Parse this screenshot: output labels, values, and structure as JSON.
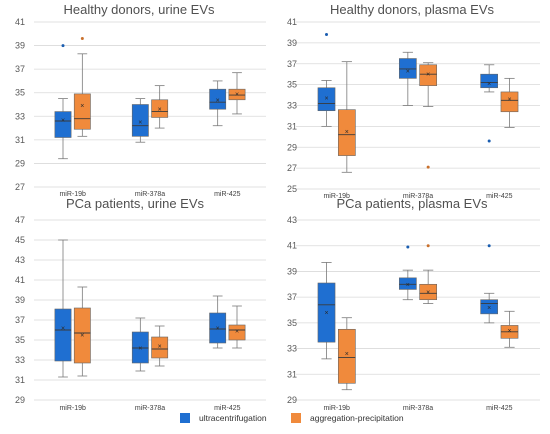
{
  "legend": [
    {
      "label": "ultracentrifugation",
      "color": "#1f6fd1"
    },
    {
      "label": "aggregation-precipitation",
      "color": "#f08a3c"
    }
  ],
  "chart_data": [
    {
      "type": "box",
      "title": "Healthy donors, urine EVs",
      "ylim": [
        27,
        41
      ],
      "yticks": [
        27,
        29,
        31,
        33,
        35,
        37,
        39,
        41
      ],
      "grid": true,
      "categories": [
        "miR-19b",
        "miR-378a",
        "miR-425"
      ],
      "series": [
        {
          "name": "ultracentrifugation",
          "color": "#1f6fd1",
          "boxes": [
            {
              "min": 29.4,
              "q1": 31.2,
              "median": 32.6,
              "q3": 33.4,
              "max": 34.5,
              "mean": 32.7,
              "outliers": [
                39.0
              ]
            },
            {
              "min": 30.8,
              "q1": 31.3,
              "median": 32.2,
              "q3": 34.0,
              "max": 34.5,
              "mean": 32.5,
              "outliers": []
            },
            {
              "min": 32.2,
              "q1": 33.6,
              "median": 34.2,
              "q3": 35.3,
              "max": 36.0,
              "mean": 34.4,
              "outliers": []
            }
          ]
        },
        {
          "name": "aggregation-precipitation",
          "color": "#f08a3c",
          "boxes": [
            {
              "min": 31.3,
              "q1": 31.9,
              "median": 32.8,
              "q3": 34.9,
              "max": 38.3,
              "mean": 33.9,
              "outliers": [
                39.6
              ]
            },
            {
              "min": 32.0,
              "q1": 32.9,
              "median": 33.4,
              "q3": 34.4,
              "max": 35.6,
              "mean": 33.6,
              "outliers": []
            },
            {
              "min": 33.2,
              "q1": 34.4,
              "median": 34.8,
              "q3": 35.3,
              "max": 36.7,
              "mean": 34.9,
              "outliers": []
            }
          ]
        }
      ]
    },
    {
      "type": "box",
      "title": "Healthy donors, plasma EVs",
      "ylim": [
        25,
        41
      ],
      "yticks": [
        25,
        27,
        29,
        31,
        33,
        35,
        37,
        39,
        41
      ],
      "grid": true,
      "categories": [
        "miR-19b",
        "miR-378a",
        "miR-425"
      ],
      "series": [
        {
          "name": "ultracentrifugation",
          "color": "#1f6fd1",
          "boxes": [
            {
              "min": 31.0,
              "q1": 32.5,
              "median": 33.2,
              "q3": 34.7,
              "max": 35.4,
              "mean": 33.7,
              "outliers": [
                39.8
              ]
            },
            {
              "min": 33.0,
              "q1": 35.6,
              "median": 36.5,
              "q3": 37.5,
              "max": 38.1,
              "mean": 36.3,
              "outliers": []
            },
            {
              "min": 34.3,
              "q1": 34.7,
              "median": 35.2,
              "q3": 36.0,
              "max": 36.9,
              "mean": 35.1,
              "outliers": [
                29.6
              ]
            }
          ]
        },
        {
          "name": "aggregation-precipitation",
          "color": "#f08a3c",
          "boxes": [
            {
              "min": 26.6,
              "q1": 28.2,
              "median": 30.2,
              "q3": 32.6,
              "max": 37.2,
              "mean": 30.5,
              "outliers": []
            },
            {
              "min": 32.9,
              "q1": 34.9,
              "median": 36.0,
              "q3": 36.9,
              "max": 37.1,
              "mean": 36.0,
              "outliers": [
                27.1
              ]
            },
            {
              "min": 30.9,
              "q1": 32.4,
              "median": 33.5,
              "q3": 34.3,
              "max": 35.6,
              "mean": 33.6,
              "outliers": []
            }
          ]
        }
      ]
    },
    {
      "type": "box",
      "title": "PCa patients, urine EVs",
      "ylim": [
        29,
        47
      ],
      "yticks": [
        29,
        31,
        33,
        35,
        37,
        39,
        41,
        43,
        45,
        47
      ],
      "grid": true,
      "categories": [
        "miR-19b",
        "miR-378a",
        "miR-425"
      ],
      "series": [
        {
          "name": "ultracentrifugation",
          "color": "#1f6fd1",
          "boxes": [
            {
              "min": 31.3,
              "q1": 32.9,
              "median": 36.0,
              "q3": 38.1,
              "max": 45.0,
              "mean": 36.2,
              "outliers": []
            },
            {
              "min": 31.9,
              "q1": 32.7,
              "median": 34.2,
              "q3": 35.8,
              "max": 37.2,
              "mean": 34.2,
              "outliers": []
            },
            {
              "min": 34.2,
              "q1": 34.7,
              "median": 36.1,
              "q3": 37.7,
              "max": 39.4,
              "mean": 36.2,
              "outliers": []
            }
          ]
        },
        {
          "name": "aggregation-precipitation",
          "color": "#f08a3c",
          "boxes": [
            {
              "min": 31.4,
              "q1": 32.7,
              "median": 35.7,
              "q3": 38.2,
              "max": 40.3,
              "mean": 35.5,
              "outliers": []
            },
            {
              "min": 32.4,
              "q1": 33.2,
              "median": 34.1,
              "q3": 35.3,
              "max": 36.4,
              "mean": 34.4,
              "outliers": []
            },
            {
              "min": 34.2,
              "q1": 35.0,
              "median": 36.0,
              "q3": 36.5,
              "max": 38.4,
              "mean": 35.9,
              "outliers": []
            }
          ]
        }
      ]
    },
    {
      "type": "box",
      "title": "PCa patients, plasma EVs",
      "ylim": [
        29,
        43
      ],
      "yticks": [
        29,
        31,
        33,
        35,
        37,
        39,
        41,
        43
      ],
      "grid": true,
      "categories": [
        "miR-19b",
        "miR-378a",
        "miR-425"
      ],
      "series": [
        {
          "name": "ultracentrifugation",
          "color": "#1f6fd1",
          "boxes": [
            {
              "min": 32.2,
              "q1": 33.5,
              "median": 36.4,
              "q3": 38.1,
              "max": 39.7,
              "mean": 35.8,
              "outliers": []
            },
            {
              "min": 36.8,
              "q1": 37.6,
              "median": 38.0,
              "q3": 38.5,
              "max": 39.1,
              "mean": 38.0,
              "outliers": [
                40.9
              ]
            },
            {
              "min": 35.0,
              "q1": 35.7,
              "median": 36.5,
              "q3": 36.8,
              "max": 37.3,
              "mean": 36.2,
              "outliers": [
                41.0
              ]
            }
          ]
        },
        {
          "name": "aggregation-precipitation",
          "color": "#f08a3c",
          "boxes": [
            {
              "min": 29.8,
              "q1": 30.3,
              "median": 32.3,
              "q3": 34.5,
              "max": 35.4,
              "mean": 32.6,
              "outliers": []
            },
            {
              "min": 36.5,
              "q1": 36.8,
              "median": 37.3,
              "q3": 38.0,
              "max": 39.1,
              "mean": 37.4,
              "outliers": [
                41.0
              ]
            },
            {
              "min": 33.1,
              "q1": 33.8,
              "median": 34.3,
              "q3": 34.8,
              "max": 35.9,
              "mean": 34.4,
              "outliers": []
            }
          ]
        }
      ]
    }
  ]
}
